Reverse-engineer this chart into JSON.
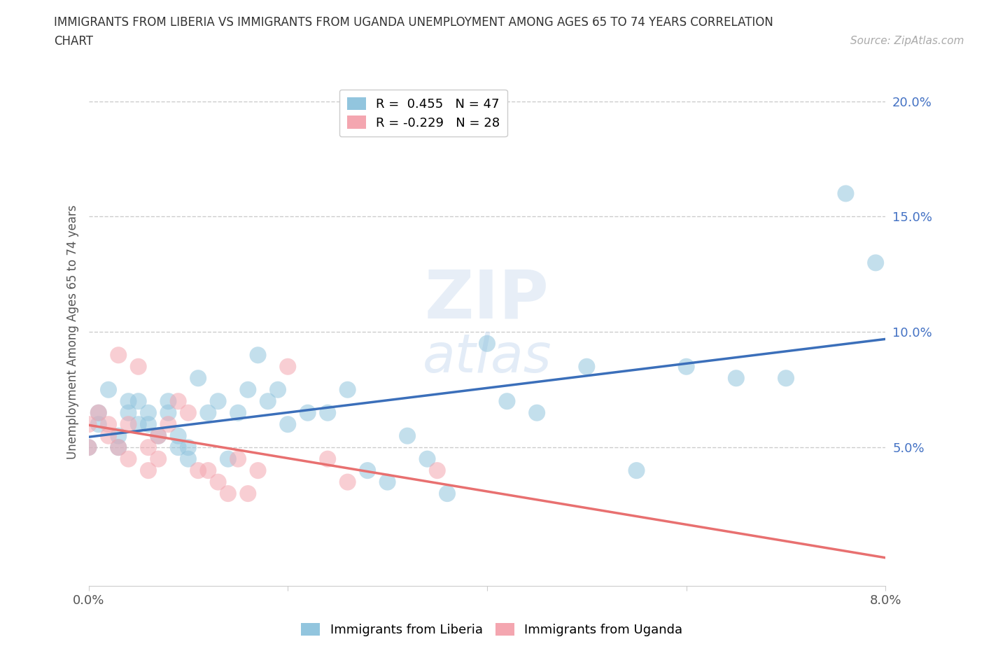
{
  "title": "IMMIGRANTS FROM LIBERIA VS IMMIGRANTS FROM UGANDA UNEMPLOYMENT AMONG AGES 65 TO 74 YEARS CORRELATION\nCHART",
  "source": "Source: ZipAtlas.com",
  "ylabel": "Unemployment Among Ages 65 to 74 years",
  "xlim": [
    0.0,
    0.08
  ],
  "ylim": [
    -0.01,
    0.21
  ],
  "yticks": [
    0.05,
    0.1,
    0.15,
    0.2
  ],
  "ytick_labels": [
    "5.0%",
    "10.0%",
    "15.0%",
    "20.0%"
  ],
  "xticks": [
    0.0,
    0.02,
    0.04,
    0.06,
    0.08
  ],
  "xtick_labels": [
    "0.0%",
    "",
    "",
    "",
    "8.0%"
  ],
  "liberia_R": 0.455,
  "liberia_N": 47,
  "uganda_R": -0.229,
  "uganda_N": 28,
  "liberia_color": "#92c5de",
  "uganda_color": "#f4a6b0",
  "liberia_line_color": "#3b6fba",
  "uganda_line_color": "#e87070",
  "liberia_x": [
    0.0,
    0.001,
    0.001,
    0.002,
    0.003,
    0.003,
    0.004,
    0.004,
    0.005,
    0.005,
    0.006,
    0.006,
    0.007,
    0.008,
    0.008,
    0.009,
    0.009,
    0.01,
    0.01,
    0.011,
    0.012,
    0.013,
    0.014,
    0.015,
    0.016,
    0.017,
    0.018,
    0.019,
    0.02,
    0.022,
    0.024,
    0.026,
    0.028,
    0.03,
    0.032,
    0.034,
    0.036,
    0.04,
    0.042,
    0.045,
    0.05,
    0.055,
    0.06,
    0.065,
    0.07,
    0.076,
    0.079
  ],
  "liberia_y": [
    0.05,
    0.065,
    0.06,
    0.075,
    0.055,
    0.05,
    0.07,
    0.065,
    0.06,
    0.07,
    0.065,
    0.06,
    0.055,
    0.07,
    0.065,
    0.055,
    0.05,
    0.05,
    0.045,
    0.08,
    0.065,
    0.07,
    0.045,
    0.065,
    0.075,
    0.09,
    0.07,
    0.075,
    0.06,
    0.065,
    0.065,
    0.075,
    0.04,
    0.035,
    0.055,
    0.045,
    0.03,
    0.095,
    0.07,
    0.065,
    0.085,
    0.04,
    0.085,
    0.08,
    0.08,
    0.16,
    0.13
  ],
  "uganda_x": [
    0.0,
    0.0,
    0.001,
    0.002,
    0.002,
    0.003,
    0.003,
    0.004,
    0.004,
    0.005,
    0.006,
    0.006,
    0.007,
    0.007,
    0.008,
    0.009,
    0.01,
    0.011,
    0.012,
    0.013,
    0.014,
    0.015,
    0.016,
    0.017,
    0.02,
    0.024,
    0.026,
    0.035
  ],
  "uganda_y": [
    0.05,
    0.06,
    0.065,
    0.055,
    0.06,
    0.05,
    0.09,
    0.06,
    0.045,
    0.085,
    0.05,
    0.04,
    0.055,
    0.045,
    0.06,
    0.07,
    0.065,
    0.04,
    0.04,
    0.035,
    0.03,
    0.045,
    0.03,
    0.04,
    0.085,
    0.045,
    0.035,
    0.04
  ],
  "background_color": "#ffffff",
  "grid_color": "#cccccc"
}
